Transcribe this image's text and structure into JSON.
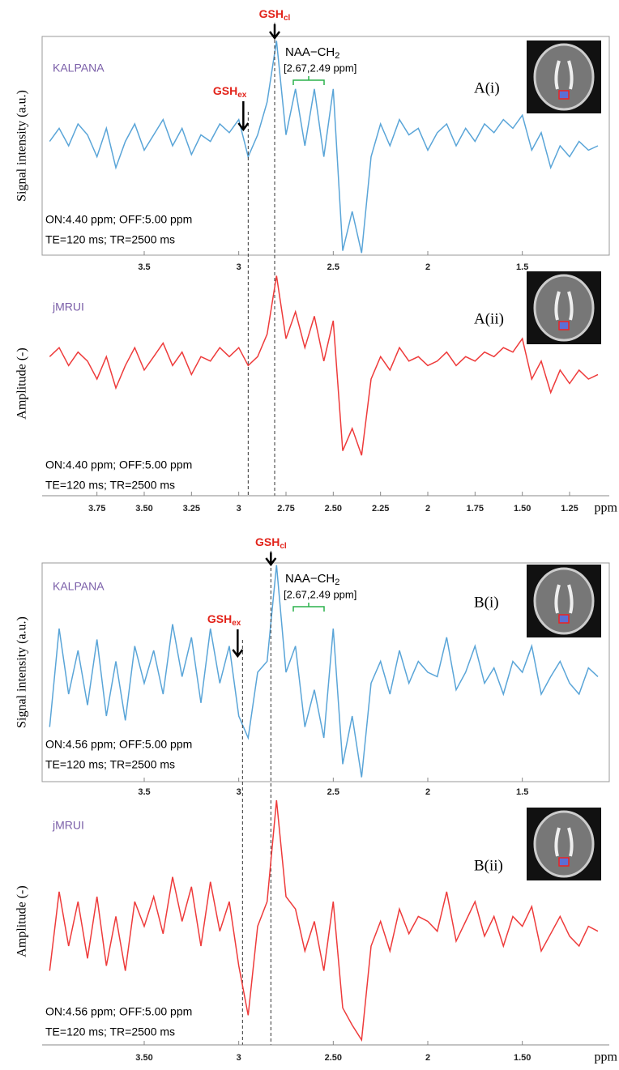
{
  "chart_data": [
    {
      "type": "line",
      "panel": "A(i)",
      "software": "KALPANA",
      "ylabel": "Signal intensity (a.u.)",
      "notes": [
        "ON:4.40 ppm; OFF:5.00 ppm",
        "TE=120 ms; TR=2500 ms"
      ],
      "color": "#5aa5d8",
      "xlim": [
        4.04,
        1.04
      ],
      "ylim": [
        0,
        100
      ],
      "xticks": [
        3.5,
        3,
        2.5,
        2,
        1.5
      ],
      "annotations": [
        {
          "text": "GSH",
          "subscript": "cl",
          "x": 2.81
        },
        {
          "text": "GSH",
          "subscript": "ex",
          "x": 2.95
        }
      ],
      "naa": {
        "text": "NAA−CH",
        "subscript": "2",
        "range": "[2.67,2.49 ppm]"
      },
      "x": [
        4.0,
        3.95,
        3.9,
        3.85,
        3.8,
        3.75,
        3.7,
        3.65,
        3.6,
        3.55,
        3.5,
        3.45,
        3.4,
        3.35,
        3.3,
        3.25,
        3.2,
        3.15,
        3.1,
        3.05,
        3.0,
        2.95,
        2.9,
        2.85,
        2.8,
        2.75,
        2.7,
        2.65,
        2.6,
        2.55,
        2.5,
        2.45,
        2.4,
        2.35,
        2.3,
        2.25,
        2.2,
        2.15,
        2.1,
        2.05,
        2.0,
        1.95,
        1.9,
        1.85,
        1.8,
        1.75,
        1.7,
        1.65,
        1.6,
        1.55,
        1.5,
        1.45,
        1.4,
        1.35,
        1.3,
        1.25,
        1.2,
        1.15,
        1.1
      ],
      "values": [
        52,
        58,
        50,
        60,
        55,
        45,
        58,
        40,
        52,
        60,
        48,
        55,
        62,
        50,
        58,
        46,
        55,
        52,
        60,
        56,
        62,
        45,
        55,
        70,
        98,
        55,
        76,
        50,
        76,
        45,
        76,
        2,
        20,
        1,
        45,
        60,
        50,
        62,
        55,
        58,
        48,
        56,
        60,
        50,
        58,
        52,
        60,
        56,
        62,
        58,
        64,
        48,
        56,
        40,
        50,
        45,
        52,
        48,
        50
      ]
    },
    {
      "type": "line",
      "panel": "A(ii)",
      "software": "jMRUI",
      "ylabel": "Amplitude (-)",
      "xlabel": "ppm",
      "notes": [
        "ON:4.40 ppm; OFF:5.00 ppm",
        "TE=120 ms; TR=2500 ms"
      ],
      "color": "#ee3b3b",
      "xlim": [
        4.04,
        1.04
      ],
      "ylim": [
        0,
        100
      ],
      "xticks": [
        3.75,
        {
          "value": 3.5,
          "label": "3.50"
        },
        3.25,
        3,
        2.75,
        {
          "value": 2.5,
          "label": "2.50"
        },
        2.25,
        2,
        1.75,
        {
          "value": 1.5,
          "label": "1.50"
        },
        1.25
      ],
      "x": [
        4.0,
        3.95,
        3.9,
        3.85,
        3.8,
        3.75,
        3.7,
        3.65,
        3.6,
        3.55,
        3.5,
        3.45,
        3.4,
        3.35,
        3.3,
        3.25,
        3.2,
        3.15,
        3.1,
        3.05,
        3.0,
        2.95,
        2.9,
        2.85,
        2.8,
        2.75,
        2.7,
        2.65,
        2.6,
        2.55,
        2.5,
        2.45,
        2.4,
        2.35,
        2.3,
        2.25,
        2.2,
        2.15,
        2.1,
        2.05,
        2.0,
        1.95,
        1.9,
        1.85,
        1.8,
        1.75,
        1.7,
        1.65,
        1.6,
        1.55,
        1.5,
        1.45,
        1.4,
        1.35,
        1.3,
        1.25,
        1.2,
        1.15,
        1.1
      ],
      "values": [
        62,
        66,
        58,
        64,
        60,
        52,
        62,
        48,
        58,
        66,
        56,
        62,
        68,
        58,
        64,
        54,
        62,
        60,
        66,
        62,
        66,
        58,
        62,
        72,
        98,
        70,
        82,
        66,
        80,
        60,
        78,
        20,
        30,
        18,
        52,
        62,
        56,
        66,
        60,
        62,
        58,
        60,
        64,
        58,
        62,
        60,
        64,
        62,
        66,
        64,
        70,
        52,
        60,
        46,
        56,
        50,
        56,
        52,
        54
      ]
    },
    {
      "type": "line",
      "panel": "B(i)",
      "software": "KALPANA",
      "ylabel": "Signal intensity (a.u.)",
      "notes": [
        "ON:4.56 ppm; OFF:5.00 ppm",
        "TE=120 ms; TR=2500 ms"
      ],
      "color": "#5aa5d8",
      "xlim": [
        4.04,
        1.04
      ],
      "ylim": [
        0,
        100
      ],
      "xticks": [
        3.5,
        3,
        2.5,
        2,
        1.5
      ],
      "annotations": [
        {
          "text": "GSH",
          "subscript": "cl",
          "x": 2.83
        },
        {
          "text": "GSH",
          "subscript": "ex",
          "x": 2.98
        }
      ],
      "naa": {
        "text": "NAA−CH",
        "subscript": "2",
        "range": "[2.67,2.49 ppm]"
      },
      "x": [
        4.0,
        3.95,
        3.9,
        3.85,
        3.8,
        3.75,
        3.7,
        3.65,
        3.6,
        3.55,
        3.5,
        3.45,
        3.4,
        3.35,
        3.3,
        3.25,
        3.2,
        3.15,
        3.1,
        3.05,
        3.0,
        2.95,
        2.9,
        2.85,
        2.8,
        2.75,
        2.7,
        2.65,
        2.6,
        2.55,
        2.5,
        2.45,
        2.4,
        2.35,
        2.3,
        2.25,
        2.2,
        2.15,
        2.1,
        2.05,
        2.0,
        1.95,
        1.9,
        1.85,
        1.8,
        1.75,
        1.7,
        1.65,
        1.6,
        1.55,
        1.5,
        1.45,
        1.4,
        1.35,
        1.3,
        1.25,
        1.2,
        1.15,
        1.1
      ],
      "values": [
        25,
        70,
        40,
        60,
        35,
        65,
        30,
        55,
        28,
        62,
        45,
        60,
        40,
        72,
        48,
        66,
        36,
        70,
        45,
        62,
        30,
        20,
        50,
        55,
        99,
        50,
        62,
        25,
        42,
        20,
        70,
        8,
        30,
        2,
        45,
        55,
        40,
        60,
        45,
        55,
        50,
        48,
        66,
        42,
        50,
        62,
        45,
        52,
        40,
        55,
        50,
        62,
        40,
        48,
        55,
        45,
        40,
        52,
        48
      ]
    },
    {
      "type": "line",
      "panel": "B(ii)",
      "software": "jMRUI",
      "ylabel": "Amplitude (-)",
      "xlabel": "ppm",
      "notes": [
        "ON:4.56 ppm; OFF:5.00 ppm",
        "TE=120 ms; TR=2500 ms"
      ],
      "color": "#ee3b3b",
      "xlim": [
        4.04,
        1.04
      ],
      "ylim": [
        0,
        100
      ],
      "xticks": [
        {
          "value": 3.5,
          "label": "3.50"
        },
        3,
        {
          "value": 2.5,
          "label": "2.50"
        },
        2,
        {
          "value": 1.5,
          "label": "1.50"
        }
      ],
      "x": [
        4.0,
        3.95,
        3.9,
        3.85,
        3.8,
        3.75,
        3.7,
        3.65,
        3.6,
        3.55,
        3.5,
        3.45,
        3.4,
        3.35,
        3.3,
        3.25,
        3.2,
        3.15,
        3.1,
        3.05,
        3.0,
        2.95,
        2.9,
        2.85,
        2.8,
        2.75,
        2.7,
        2.65,
        2.6,
        2.55,
        2.5,
        2.45,
        2.4,
        2.35,
        2.3,
        2.25,
        2.2,
        2.15,
        2.1,
        2.05,
        2.0,
        1.95,
        1.9,
        1.85,
        1.8,
        1.75,
        1.7,
        1.65,
        1.6,
        1.55,
        1.5,
        1.45,
        1.4,
        1.35,
        1.3,
        1.25,
        1.2,
        1.15,
        1.1
      ],
      "values": [
        30,
        62,
        40,
        58,
        35,
        60,
        32,
        52,
        30,
        58,
        48,
        60,
        45,
        68,
        50,
        64,
        40,
        66,
        46,
        58,
        32,
        12,
        48,
        58,
        99,
        60,
        55,
        38,
        50,
        30,
        58,
        15,
        8,
        2,
        40,
        50,
        38,
        55,
        45,
        52,
        50,
        46,
        62,
        42,
        50,
        58,
        44,
        52,
        40,
        52,
        48,
        56,
        38,
        45,
        52,
        44,
        40,
        48,
        46
      ]
    }
  ]
}
